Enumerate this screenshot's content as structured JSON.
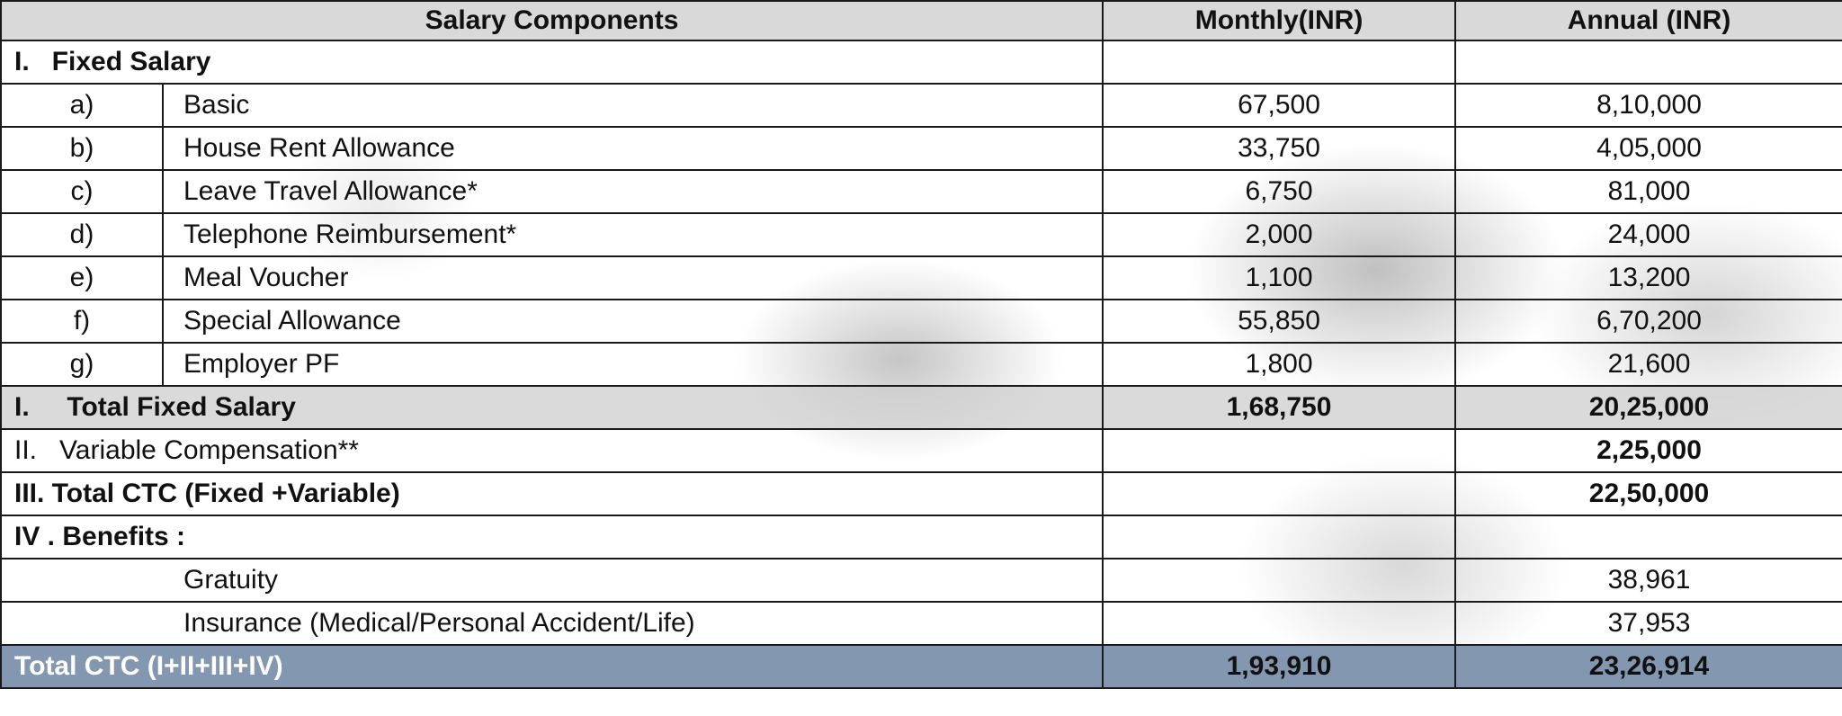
{
  "header": {
    "component": "Salary Components",
    "monthly": "Monthly(INR)",
    "annual": "Annual (INR)"
  },
  "fixed_section": {
    "label": "I.   Fixed Salary"
  },
  "fixed_items": [
    {
      "idx": "a)",
      "label": "Basic",
      "monthly": "67,500",
      "annual": "8,10,000"
    },
    {
      "idx": "b)",
      "label": "House Rent Allowance",
      "monthly": "33,750",
      "annual": "4,05,000"
    },
    {
      "idx": "c)",
      "label": "Leave Travel Allowance*",
      "monthly": "6,750",
      "annual": "81,000"
    },
    {
      "idx": "d)",
      "label": "Telephone Reimbursement*",
      "monthly": "2,000",
      "annual": "24,000"
    },
    {
      "idx": "e)",
      "label": "Meal Voucher",
      "monthly": "1,100",
      "annual": "13,200"
    },
    {
      "idx": "f)",
      "label": "Special Allowance",
      "monthly": "55,850",
      "annual": "6,70,200"
    },
    {
      "idx": "g)",
      "label": "Employer PF",
      "monthly": "1,800",
      "annual": "21,600"
    }
  ],
  "total_fixed": {
    "label": "I.     Total Fixed Salary",
    "monthly": "1,68,750",
    "annual": "20,25,000"
  },
  "variable": {
    "label": "II.   Variable Compensation**",
    "monthly": "",
    "annual": "2,25,000"
  },
  "total_ctc_fv": {
    "label": "III. Total CTC (Fixed +Variable)",
    "monthly": "",
    "annual": "22,50,000"
  },
  "benefits_section": {
    "label": "IV . Benefits :"
  },
  "benefits_items": [
    {
      "label": "Gratuity",
      "monthly": "",
      "annual": "38,961"
    },
    {
      "label": "Insurance (Medical/Personal Accident/Life)",
      "monthly": "",
      "annual": "37,953"
    }
  ],
  "grand_total": {
    "label": "Total CTC (I+II+III+IV)",
    "monthly": "1,93,910",
    "annual": "23,26,914"
  },
  "colors": {
    "header_bg": "#d7d7d7",
    "grand_total_bg": "#8497b0"
  }
}
